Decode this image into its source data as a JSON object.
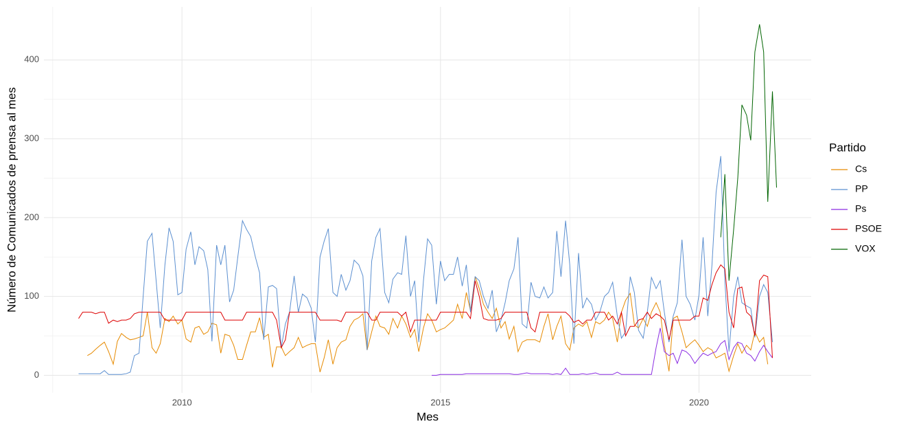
{
  "chart_data": {
    "type": "line",
    "x_label": "Mes",
    "y_label": "Número de Comunicados de prensa al mes",
    "legend_title": "Partido",
    "legend_position": "right",
    "grid": true,
    "xlim": [
      2007.33,
      2022.17
    ],
    "xticks": [
      2010,
      2015,
      2020
    ],
    "ylim": [
      -22.25,
      467.25
    ],
    "yticks": [
      0,
      100,
      200,
      300,
      400
    ],
    "x": [
      2008,
      2008.08,
      2008.17,
      2008.25,
      2008.33,
      2008.42,
      2008.5,
      2008.58,
      2008.67,
      2008.75,
      2008.83,
      2008.92,
      2009,
      2009.08,
      2009.17,
      2009.25,
      2009.33,
      2009.42,
      2009.5,
      2009.58,
      2009.67,
      2009.75,
      2009.83,
      2009.92,
      2010,
      2010.08,
      2010.17,
      2010.25,
      2010.33,
      2010.42,
      2010.5,
      2010.58,
      2010.67,
      2010.75,
      2010.83,
      2010.92,
      2011,
      2011.08,
      2011.17,
      2011.25,
      2011.33,
      2011.42,
      2011.5,
      2011.58,
      2011.67,
      2011.75,
      2011.83,
      2011.92,
      2012,
      2012.08,
      2012.17,
      2012.25,
      2012.33,
      2012.42,
      2012.5,
      2012.58,
      2012.67,
      2012.75,
      2012.83,
      2012.92,
      2013,
      2013.08,
      2013.17,
      2013.25,
      2013.33,
      2013.42,
      2013.5,
      2013.58,
      2013.67,
      2013.75,
      2013.83,
      2013.92,
      2014,
      2014.08,
      2014.17,
      2014.25,
      2014.33,
      2014.42,
      2014.5,
      2014.58,
      2014.67,
      2014.75,
      2014.83,
      2014.92,
      2015,
      2015.08,
      2015.17,
      2015.25,
      2015.33,
      2015.42,
      2015.5,
      2015.58,
      2015.67,
      2015.75,
      2015.83,
      2015.92,
      2016,
      2016.08,
      2016.17,
      2016.25,
      2016.33,
      2016.42,
      2016.5,
      2016.58,
      2016.67,
      2016.75,
      2016.83,
      2016.92,
      2017,
      2017.08,
      2017.17,
      2017.25,
      2017.33,
      2017.42,
      2017.5,
      2017.58,
      2017.67,
      2017.75,
      2017.83,
      2017.92,
      2018,
      2018.08,
      2018.17,
      2018.25,
      2018.33,
      2018.42,
      2018.5,
      2018.58,
      2018.67,
      2018.75,
      2018.83,
      2018.92,
      2019,
      2019.08,
      2019.17,
      2019.25,
      2019.33,
      2019.42,
      2019.5,
      2019.58,
      2019.67,
      2019.75,
      2019.83,
      2019.92,
      2020,
      2020.08,
      2020.17,
      2020.25,
      2020.33,
      2020.42,
      2020.5,
      2020.58,
      2020.67,
      2020.75,
      2020.83,
      2020.92,
      2021,
      2021.08,
      2021.17,
      2021.25,
      2021.33,
      2021.42,
      2021.5
    ],
    "series": [
      {
        "name": "Cs",
        "color": "#e68a00",
        "values": [
          null,
          null,
          25,
          28,
          33,
          38,
          42,
          30,
          14,
          43,
          53,
          48,
          45,
          46,
          48,
          50,
          80,
          35,
          28,
          40,
          72,
          68,
          75,
          65,
          70,
          46,
          42,
          60,
          62,
          52,
          55,
          66,
          64,
          28,
          52,
          50,
          38,
          20,
          20,
          38,
          55,
          55,
          73,
          48,
          52,
          10,
          36,
          36,
          25,
          30,
          35,
          48,
          35,
          38,
          40,
          40,
          4,
          22,
          45,
          14,
          35,
          42,
          45,
          62,
          70,
          73,
          78,
          32,
          55,
          75,
          62,
          60,
          52,
          72,
          60,
          75,
          65,
          48,
          58,
          30,
          60,
          78,
          70,
          55,
          58,
          60,
          65,
          70,
          90,
          72,
          105,
          82,
          125,
          110,
          90,
          80,
          72,
          85,
          60,
          68,
          46,
          62,
          30,
          42,
          45,
          45,
          45,
          42,
          62,
          78,
          45,
          62,
          75,
          40,
          32,
          60,
          65,
          62,
          68,
          48,
          68,
          65,
          70,
          80,
          72,
          42,
          80,
          95,
          104,
          64,
          60,
          72,
          62,
          80,
          92,
          80,
          38,
          5,
          72,
          75,
          55,
          35,
          40,
          45,
          38,
          30,
          35,
          32,
          22,
          25,
          28,
          5,
          25,
          40,
          28,
          38,
          32,
          55,
          42,
          48,
          14,
          null,
          null
        ]
      },
      {
        "name": "PP",
        "color": "#5b8fd0",
        "values": [
          2,
          2,
          2,
          2,
          2,
          2,
          6,
          1,
          1,
          1,
          1,
          2,
          4,
          25,
          28,
          100,
          170,
          180,
          120,
          60,
          140,
          187,
          170,
          102,
          105,
          160,
          182,
          140,
          163,
          158,
          134,
          43,
          165,
          140,
          165,
          93,
          108,
          150,
          196,
          185,
          176,
          150,
          130,
          45,
          112,
          114,
          110,
          35,
          65,
          80,
          126,
          80,
          103,
          98,
          85,
          42,
          150,
          170,
          186,
          105,
          100,
          128,
          108,
          120,
          146,
          140,
          126,
          32,
          145,
          175,
          186,
          105,
          92,
          122,
          130,
          128,
          177,
          100,
          120,
          42,
          120,
          173,
          165,
          90,
          145,
          120,
          128,
          128,
          150,
          113,
          140,
          80,
          125,
          120,
          100,
          85,
          108,
          55,
          70,
          92,
          120,
          135,
          175,
          65,
          60,
          118,
          100,
          98,
          112,
          98,
          105,
          183,
          125,
          196,
          140,
          40,
          155,
          85,
          98,
          90,
          70,
          80,
          100,
          105,
          118,
          75,
          47,
          55,
          125,
          105,
          57,
          47,
          80,
          124,
          110,
          120,
          80,
          42,
          75,
          92,
          172,
          100,
          90,
          70,
          102,
          175,
          75,
          140,
          232,
          278,
          120,
          30,
          100,
          125,
          92,
          88,
          85,
          48,
          100,
          115,
          105,
          42,
          null
        ]
      },
      {
        "name": "Ps",
        "color": "#8a2be2",
        "values": [
          null,
          null,
          null,
          null,
          null,
          null,
          null,
          null,
          null,
          null,
          null,
          null,
          null,
          null,
          null,
          null,
          null,
          null,
          null,
          null,
          null,
          null,
          null,
          null,
          null,
          null,
          null,
          null,
          null,
          null,
          null,
          null,
          null,
          null,
          null,
          null,
          null,
          null,
          null,
          null,
          null,
          null,
          null,
          null,
          null,
          null,
          null,
          null,
          null,
          null,
          null,
          null,
          null,
          null,
          null,
          null,
          null,
          null,
          null,
          null,
          null,
          null,
          null,
          null,
          null,
          null,
          null,
          null,
          null,
          null,
          null,
          null,
          null,
          null,
          null,
          null,
          null,
          null,
          null,
          null,
          null,
          null,
          0,
          0,
          1,
          1,
          1,
          1,
          1,
          1,
          2,
          2,
          2,
          2,
          2,
          2,
          2,
          2,
          2,
          2,
          2,
          1,
          1,
          2,
          3,
          2,
          2,
          2,
          2,
          2,
          1,
          2,
          1,
          9,
          1,
          1,
          1,
          2,
          1,
          2,
          3,
          1,
          1,
          1,
          1,
          4,
          1,
          1,
          1,
          1,
          1,
          1,
          1,
          1,
          35,
          60,
          30,
          25,
          28,
          15,
          32,
          30,
          25,
          15,
          22,
          28,
          25,
          28,
          30,
          40,
          44,
          20,
          35,
          42,
          40,
          28,
          25,
          18,
          30,
          38,
          30,
          22,
          null
        ]
      },
      {
        "name": "PSOE",
        "color": "#dd0000",
        "values": [
          72,
          80,
          80,
          80,
          78,
          80,
          80,
          66,
          70,
          68,
          70,
          70,
          72,
          78,
          80,
          80,
          80,
          80,
          80,
          80,
          70,
          70,
          70,
          70,
          70,
          80,
          80,
          80,
          80,
          80,
          80,
          80,
          80,
          80,
          70,
          70,
          70,
          70,
          70,
          80,
          80,
          80,
          80,
          80,
          80,
          80,
          70,
          35,
          45,
          80,
          80,
          80,
          80,
          80,
          80,
          80,
          70,
          70,
          70,
          70,
          70,
          68,
          80,
          80,
          80,
          80,
          80,
          80,
          70,
          70,
          80,
          80,
          80,
          80,
          80,
          75,
          80,
          55,
          70,
          70,
          70,
          70,
          70,
          70,
          80,
          80,
          80,
          80,
          80,
          80,
          80,
          72,
          120,
          100,
          72,
          70,
          70,
          70,
          72,
          80,
          80,
          80,
          80,
          80,
          80,
          60,
          55,
          80,
          80,
          80,
          80,
          80,
          80,
          80,
          75,
          67,
          70,
          65,
          70,
          70,
          80,
          80,
          80,
          70,
          75,
          65,
          80,
          50,
          62,
          62,
          70,
          72,
          80,
          72,
          78,
          75,
          70,
          45,
          70,
          70,
          70,
          70,
          70,
          75,
          75,
          98,
          95,
          115,
          130,
          140,
          135,
          80,
          60,
          110,
          112,
          80,
          75,
          50,
          120,
          127,
          125,
          22,
          null
        ]
      },
      {
        "name": "VOX",
        "color": "#006400",
        "values": [
          null,
          null,
          null,
          null,
          null,
          null,
          null,
          null,
          null,
          null,
          null,
          null,
          null,
          null,
          null,
          null,
          null,
          null,
          null,
          null,
          null,
          null,
          null,
          null,
          null,
          null,
          null,
          null,
          null,
          null,
          null,
          null,
          null,
          null,
          null,
          null,
          null,
          null,
          null,
          null,
          null,
          null,
          null,
          null,
          null,
          null,
          null,
          null,
          null,
          null,
          null,
          null,
          null,
          null,
          null,
          null,
          null,
          null,
          null,
          null,
          null,
          null,
          null,
          null,
          null,
          null,
          null,
          null,
          null,
          null,
          null,
          null,
          null,
          null,
          null,
          null,
          null,
          null,
          null,
          null,
          null,
          null,
          null,
          null,
          null,
          null,
          null,
          null,
          null,
          null,
          null,
          null,
          null,
          null,
          null,
          null,
          null,
          null,
          null,
          null,
          null,
          null,
          null,
          null,
          null,
          null,
          null,
          null,
          null,
          null,
          null,
          null,
          null,
          null,
          null,
          null,
          null,
          null,
          null,
          null,
          null,
          null,
          null,
          null,
          null,
          null,
          null,
          null,
          null,
          null,
          null,
          null,
          null,
          null,
          null,
          null,
          null,
          null,
          null,
          null,
          null,
          null,
          null,
          null,
          null,
          null,
          null,
          null,
          null,
          175,
          255,
          120,
          185,
          250,
          343,
          330,
          298,
          410,
          445,
          410,
          220,
          360,
          238
        ]
      }
    ]
  }
}
